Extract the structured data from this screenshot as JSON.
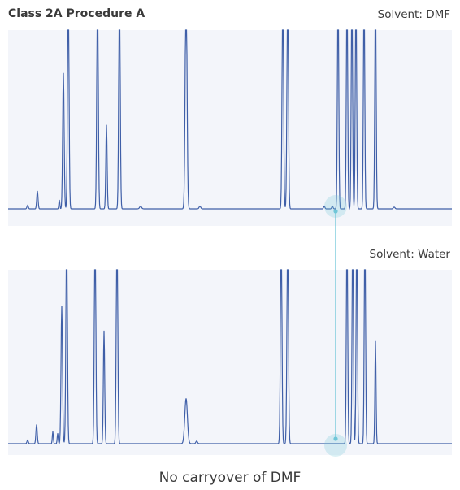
{
  "header": {
    "title": "Class 2A Procedure A"
  },
  "caption": "No carryover of DMF",
  "colors": {
    "trace": "#3f5fa8",
    "panel_bg": "#f3f5fa",
    "highlight": "#6fc6d8"
  },
  "chart_data": [
    {
      "type": "line",
      "panel_label": "Solvent: DMF",
      "peaks": [
        {
          "x": 34,
          "h": 0.02,
          "w": 0.8
        },
        {
          "x": 46,
          "h": 0.1,
          "w": 0.8
        },
        {
          "x": 73,
          "h": 0.05,
          "w": 0.6
        },
        {
          "x": 78,
          "h": 0.76,
          "w": 0.9
        },
        {
          "x": 84,
          "h": 1.3,
          "w": 0.9
        },
        {
          "x": 120,
          "h": 1.3,
          "w": 0.9
        },
        {
          "x": 131,
          "h": 0.47,
          "w": 0.8
        },
        {
          "x": 147,
          "h": 1.3,
          "w": 0.9
        },
        {
          "x": 173,
          "h": 0.015,
          "w": 1.2
        },
        {
          "x": 229,
          "h": 1.3,
          "w": 1.1
        },
        {
          "x": 246,
          "h": 0.015,
          "w": 1.0
        },
        {
          "x": 348,
          "h": 1.3,
          "w": 0.9
        },
        {
          "x": 354,
          "h": 1.3,
          "w": 0.9
        },
        {
          "x": 399,
          "h": 0.015,
          "w": 0.8
        },
        {
          "x": 409,
          "h": 0.015,
          "w": 0.8
        },
        {
          "x": 416,
          "h": 1.3,
          "w": 0.8
        },
        {
          "x": 427,
          "h": 1.3,
          "w": 0.8
        },
        {
          "x": 433,
          "h": 1.3,
          "w": 0.8
        },
        {
          "x": 438,
          "h": 1.3,
          "w": 0.8
        },
        {
          "x": 448,
          "h": 1.3,
          "w": 0.8
        },
        {
          "x": 462,
          "h": 1.3,
          "w": 0.8
        },
        {
          "x": 485,
          "h": 0.01,
          "w": 1.0
        }
      ]
    },
    {
      "type": "line",
      "panel_label": "Solvent: Water",
      "peaks": [
        {
          "x": 34,
          "h": 0.02,
          "w": 0.8
        },
        {
          "x": 45,
          "h": 0.11,
          "w": 0.8
        },
        {
          "x": 65,
          "h": 0.07,
          "w": 0.6
        },
        {
          "x": 71,
          "h": 0.06,
          "w": 0.6
        },
        {
          "x": 76,
          "h": 0.79,
          "w": 0.9
        },
        {
          "x": 82,
          "h": 1.3,
          "w": 0.9
        },
        {
          "x": 117,
          "h": 1.3,
          "w": 0.9
        },
        {
          "x": 128,
          "h": 0.65,
          "w": 0.8
        },
        {
          "x": 144,
          "h": 1.3,
          "w": 0.9
        },
        {
          "x": 229,
          "h": 0.26,
          "w": 1.6
        },
        {
          "x": 242,
          "h": 0.015,
          "w": 1.0
        },
        {
          "x": 346,
          "h": 1.3,
          "w": 0.9
        },
        {
          "x": 354,
          "h": 1.3,
          "w": 0.9
        },
        {
          "x": 427,
          "h": 1.3,
          "w": 0.8
        },
        {
          "x": 434,
          "h": 1.3,
          "w": 0.8
        },
        {
          "x": 439,
          "h": 1.3,
          "w": 0.8
        },
        {
          "x": 449,
          "h": 1.3,
          "w": 0.8
        },
        {
          "x": 462,
          "h": 0.59,
          "w": 0.7
        }
      ]
    }
  ]
}
